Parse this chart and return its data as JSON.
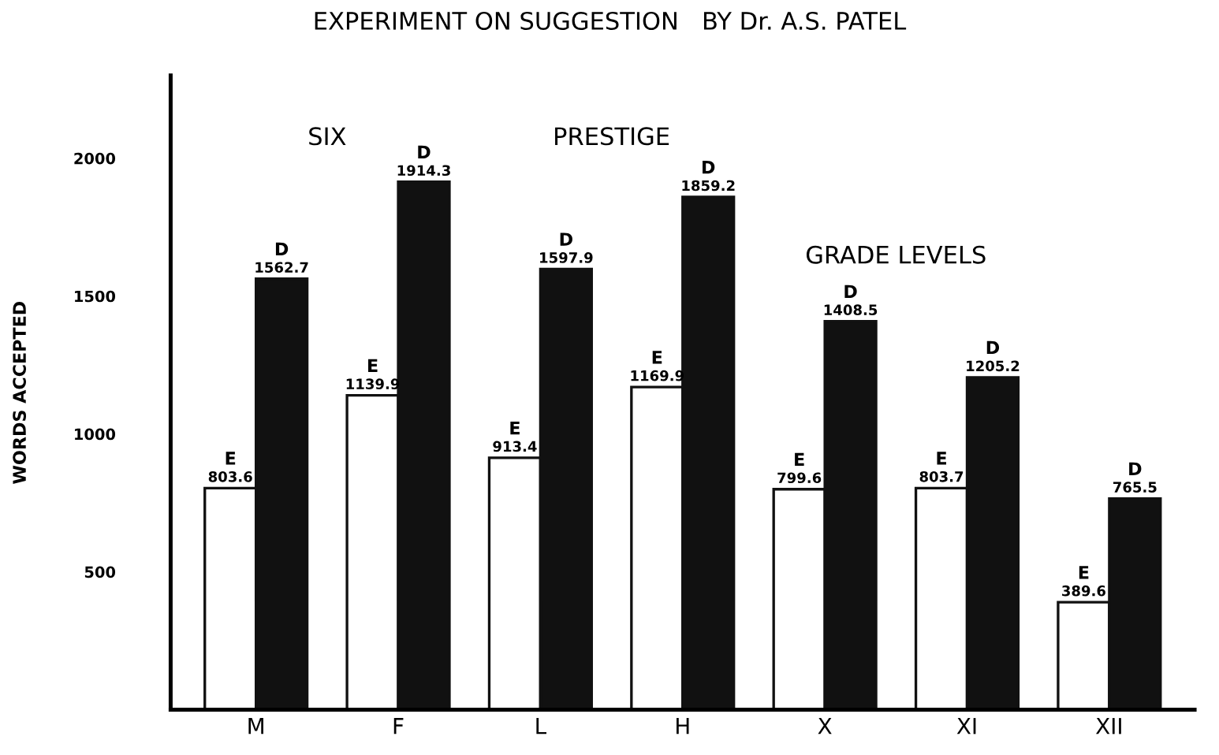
{
  "chart_data": {
    "type": "bar",
    "title": "EXPERIMENT ON SUGGESTION   BY Dr. A.S. PATEL",
    "ylabel": "WORDS ACCEPTED",
    "categories": [
      "M",
      "F",
      "L",
      "H",
      "X",
      "XI",
      "XII"
    ],
    "series": [
      {
        "name": "E",
        "color": "#ffffff",
        "values": [
          803.6,
          1139.9,
          913.4,
          1169.9,
          799.6,
          803.7,
          389.6
        ]
      },
      {
        "name": "D",
        "color": "#111111",
        "values": [
          1562.7,
          1914.3,
          1597.9,
          1859.2,
          1408.5,
          1205.2,
          765.5
        ]
      }
    ],
    "annotations": [
      "SIX",
      "PRESTIGE",
      "GRADE LEVELS"
    ],
    "ylim": [
      0,
      2300
    ],
    "yticks": [
      500,
      1000,
      1500,
      2000
    ],
    "data_labels": true,
    "grid": false,
    "legend": false
  }
}
